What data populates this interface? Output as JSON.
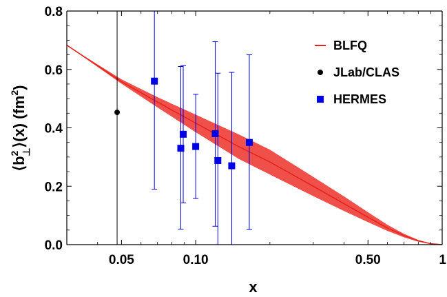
{
  "chart_data": {
    "type": "scatter",
    "xscale": "log",
    "xlim": [
      0.03,
      1.0
    ],
    "ylim": [
      0.0,
      0.8
    ],
    "xticks": [
      {
        "value": 0.05,
        "label": "0.05"
      },
      {
        "value": 0.1,
        "label": "0.10"
      },
      {
        "value": 0.5,
        "label": "0.50"
      },
      {
        "value": 1.0,
        "label": "1"
      }
    ],
    "yticks": [
      {
        "value": 0.0,
        "label": "0.0"
      },
      {
        "value": 0.2,
        "label": "0.2"
      },
      {
        "value": 0.4,
        "label": "0.4"
      },
      {
        "value": 0.6,
        "label": "0.6"
      },
      {
        "value": 0.8,
        "label": "0.8"
      }
    ],
    "xlabel": "x",
    "ylabel": {
      "pre": "⟨b",
      "sup": "2",
      "sub": "⊥",
      "mid": "⟩(x) (fm",
      "sup2": "2",
      "post": ")"
    },
    "grid": false,
    "legend_position": "top-right",
    "series": [
      {
        "name": "BLFQ",
        "kind": "band",
        "color": "#e8231f",
        "band_color": "#f0504a",
        "x": [
          0.03,
          0.05,
          0.07,
          0.1,
          0.15,
          0.2,
          0.3,
          0.4,
          0.5,
          0.6,
          0.7,
          0.8,
          0.9,
          1.0
        ],
        "y": [
          0.683,
          0.558,
          0.488,
          0.416,
          0.335,
          0.283,
          0.2,
          0.14,
          0.094,
          0.057,
          0.031,
          0.013,
          0.003,
          0.0
        ],
        "lower": [
          0.683,
          0.551,
          0.47,
          0.385,
          0.293,
          0.24,
          0.166,
          0.115,
          0.077,
          0.047,
          0.025,
          0.01,
          0.002,
          0.0
        ],
        "upper": [
          0.683,
          0.566,
          0.505,
          0.445,
          0.377,
          0.325,
          0.232,
          0.165,
          0.111,
          0.068,
          0.037,
          0.016,
          0.004,
          0.0
        ]
      },
      {
        "name": "JLab/CLAS",
        "kind": "points",
        "marker": "circle",
        "color": "#000000",
        "points": [
          {
            "x": 0.048,
            "y": 0.453,
            "lo": 0.0,
            "hi": 0.8
          }
        ]
      },
      {
        "name": "HERMES",
        "kind": "points",
        "marker": "square",
        "color": "#0000e6",
        "points": [
          {
            "x": 0.068,
            "y": 0.56,
            "lo": 0.19,
            "hi": 0.8
          },
          {
            "x": 0.087,
            "y": 0.33,
            "lo": 0.053,
            "hi": 0.61
          },
          {
            "x": 0.089,
            "y": 0.378,
            "lo": 0.143,
            "hi": 0.613
          },
          {
            "x": 0.1,
            "y": 0.336,
            "lo": 0.158,
            "hi": 0.515
          },
          {
            "x": 0.12,
            "y": 0.38,
            "lo": 0.063,
            "hi": 0.695
          },
          {
            "x": 0.123,
            "y": 0.288,
            "lo": 0.0,
            "hi": 0.587
          },
          {
            "x": 0.14,
            "y": 0.27,
            "lo": 0.0,
            "hi": 0.59
          },
          {
            "x": 0.165,
            "y": 0.35,
            "lo": 0.052,
            "hi": 0.65
          }
        ]
      }
    ]
  }
}
